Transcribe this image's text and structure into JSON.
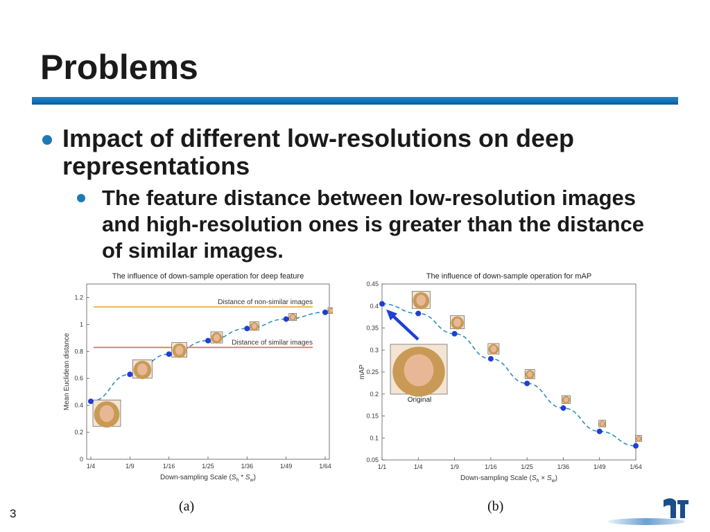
{
  "slide": {
    "title": "Problems",
    "bullets": [
      "Impact of different low-resolutions on deep representations",
      "The feature distance between low-resolution images and high-resolution ones is greater than the distance of similar images."
    ],
    "captions": [
      "(a)",
      "(b)"
    ],
    "page_number": "3",
    "accent_color": "#1670b5",
    "bullet_color": "#1d7ab5"
  },
  "chart_data": [
    {
      "type": "line",
      "title": "The influence of down-sample operation for deep feature",
      "xlabel": "Down-sampling Scale (S_h*S_w)",
      "ylabel": "Mean Euclidean distance",
      "categories": [
        "1/4",
        "1/9",
        "1/16",
        "1/25",
        "1/36",
        "1/49",
        "1/64"
      ],
      "series": [
        {
          "values": [
            0.43,
            0.63,
            0.78,
            0.88,
            0.97,
            1.04,
            1.09
          ],
          "color": "#1f3fd6",
          "style": "dashed-with-markers"
        }
      ],
      "reference_lines": [
        {
          "label": "Distance of non-similar images",
          "value": 1.13,
          "color": "#e8b84a"
        },
        {
          "label": "Distance of similar images",
          "value": 0.83,
          "color": "#e0704a"
        }
      ],
      "yticks": [
        "0",
        "0.2",
        "0.4",
        "0.6",
        "0.8",
        "1",
        "1.2"
      ],
      "ylim": [
        0,
        1.3
      ],
      "grid": false,
      "annotations": "face thumbnails at each point"
    },
    {
      "type": "line",
      "title": "The influence of down-sample operation for mAP",
      "xlabel": "Down-sampling Scale (S_h × S_w)",
      "ylabel": "mAP",
      "categories": [
        "1/1",
        "1/4",
        "1/9",
        "1/16",
        "1/25",
        "1/36",
        "1/49",
        "1/64"
      ],
      "series": [
        {
          "values": [
            0.405,
            0.383,
            0.337,
            0.28,
            0.224,
            0.168,
            0.115,
            0.082
          ],
          "color": "#1f3fd6",
          "style": "dashed-with-markers"
        }
      ],
      "annotations": [
        {
          "label": "Original",
          "points_to": "1/1"
        }
      ],
      "yticks": [
        "0.05",
        "0.1",
        "0.15",
        "0.2",
        "0.25",
        "0.3",
        "0.35",
        "0.4",
        "0.45"
      ],
      "ylim": [
        0.05,
        0.45
      ],
      "grid": false
    }
  ]
}
